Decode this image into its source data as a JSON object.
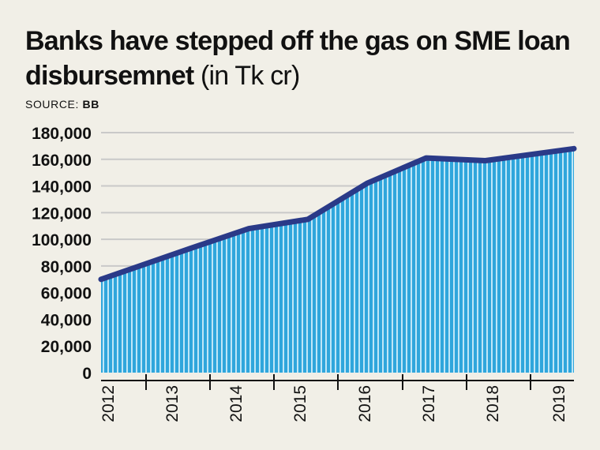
{
  "header": {
    "title": "Banks have stepped off the gas on SME loan disbursemnet",
    "title_unit": "(in Tk cr)",
    "source_label": "SOURCE:",
    "source_value": "BB"
  },
  "colors": {
    "background": "#f1efe7",
    "area_fill": "#2fa6dc",
    "area_stripe": "#bfe6f7",
    "line": "#2a3a88",
    "grid": "#c9c9c9"
  },
  "chart_data": {
    "type": "area",
    "title": "Banks have stepped off the gas on SME loan disbursemnet (in Tk cr)",
    "xlabel": "",
    "ylabel": "",
    "x": [
      "2012",
      "2013",
      "2014",
      "2015",
      "2016",
      "2017",
      "2018",
      "2019"
    ],
    "x_positions": [
      0,
      1.5,
      2.5,
      3.5,
      4.5,
      5.5,
      6.5,
      8
    ],
    "series": [
      {
        "values": [
          70000,
          93000,
          108000,
          115000,
          142000,
          161000,
          159000,
          168000
        ]
      }
    ],
    "y_ticks": [
      0,
      20000,
      40000,
      60000,
      80000,
      100000,
      120000,
      140000,
      160000,
      180000
    ],
    "y_tick_labels": [
      "0",
      "20,000",
      "40,000",
      "60,000",
      "80,000",
      "100,000",
      "120,000",
      "140,000",
      "160,000",
      "180,000"
    ],
    "ylim": [
      0,
      180000
    ],
    "grid": true,
    "legend": "none"
  }
}
